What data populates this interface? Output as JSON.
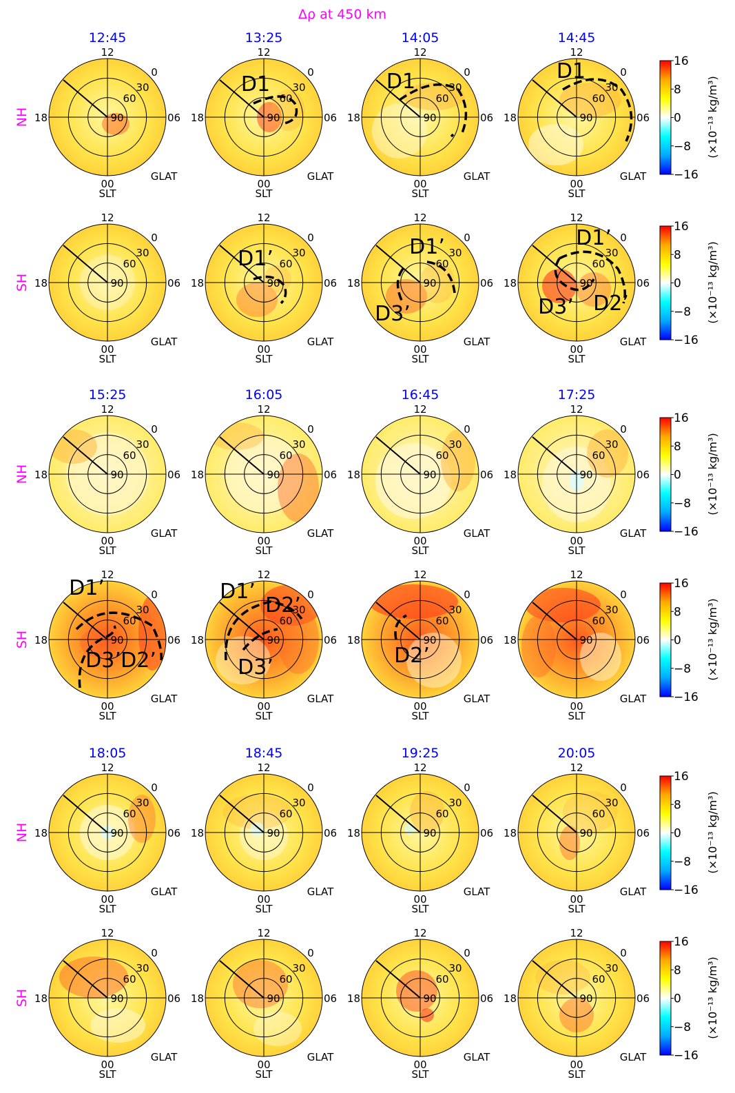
{
  "figure": {
    "title": "Δρ at 450 km",
    "colors": {
      "title": "#ff00ff",
      "time": "#0000ff",
      "hemisphere": "#ff00ff",
      "text": "#000000"
    }
  },
  "chart_data": {
    "type": "heatmap",
    "title": "Δρ at 450 km",
    "projection": "polar",
    "rings_glat_labels": [
      "90",
      "60",
      "30",
      "0"
    ],
    "slt_ticks": {
      "top": "12",
      "right": "06",
      "bottom": "00",
      "left": "18"
    },
    "axis_labels": {
      "slt": "SLT",
      "glat": "GLAT"
    },
    "colorbar": {
      "range": [
        -16,
        16
      ],
      "ticks": [
        "16",
        "8",
        "0",
        "−8",
        "−16"
      ],
      "label": "(×10⁻¹³ kg/m³)",
      "colormap": [
        "#0000ff",
        "#00aaff",
        "#00ffff",
        "#ffffff",
        "#ffff00",
        "#ffaa00",
        "#ff0000"
      ]
    },
    "blocks": [
      {
        "times": [
          "12:45",
          "13:25",
          "14:05",
          "14:45"
        ]
      },
      {
        "times": [
          "15:25",
          "16:05",
          "16:45",
          "17:25"
        ]
      },
      {
        "times": [
          "18:05",
          "18:45",
          "19:25",
          "20:05"
        ]
      }
    ],
    "hemispheres": [
      "NH",
      "SH"
    ],
    "annotations": [
      {
        "block": 0,
        "row": 0,
        "col": 1,
        "labels": [
          "D1"
        ]
      },
      {
        "block": 0,
        "row": 0,
        "col": 2,
        "labels": [
          "D1"
        ]
      },
      {
        "block": 0,
        "row": 0,
        "col": 3,
        "labels": [
          "D1"
        ]
      },
      {
        "block": 0,
        "row": 1,
        "col": 1,
        "labels": [
          "D1’"
        ]
      },
      {
        "block": 0,
        "row": 1,
        "col": 2,
        "labels": [
          "D1’",
          "D3’"
        ]
      },
      {
        "block": 0,
        "row": 1,
        "col": 3,
        "labels": [
          "D1’",
          "D3’",
          "D2’"
        ]
      },
      {
        "block": 1,
        "row": 1,
        "col": 0,
        "labels": [
          "D1’",
          "D3’",
          "D2’"
        ]
      },
      {
        "block": 1,
        "row": 1,
        "col": 1,
        "labels": [
          "D1’",
          "D2’",
          "D3’"
        ]
      },
      {
        "block": 1,
        "row": 1,
        "col": 2,
        "labels": [
          "D2’"
        ]
      }
    ]
  }
}
